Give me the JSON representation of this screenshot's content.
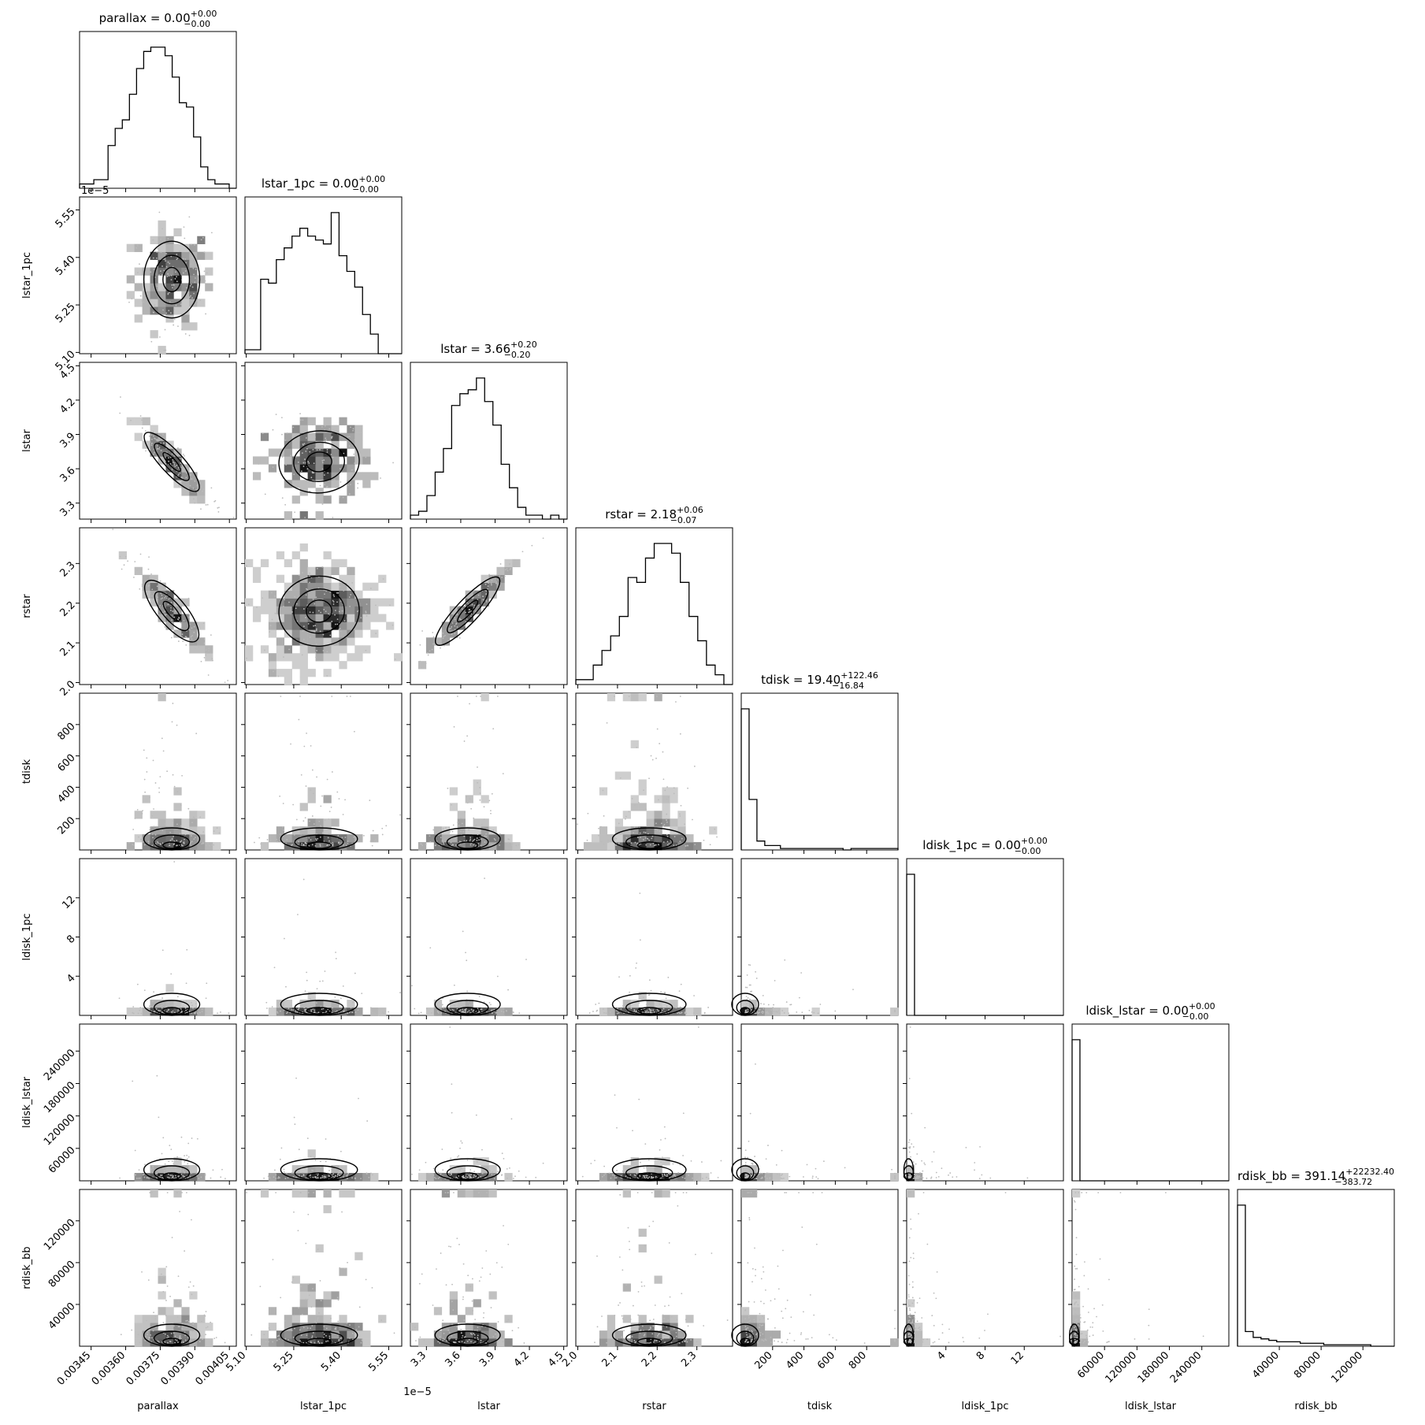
{
  "chart_data": {
    "type": "corner",
    "parameters": [
      {
        "name": "parallax",
        "label": "parallax",
        "range": [
          0.0034,
          0.00408
        ],
        "ticks": [
          {
            "v": 0.00345,
            "t": "0.00345"
          },
          {
            "v": 0.0036,
            "t": "0.00360"
          },
          {
            "v": 0.00375,
            "t": "0.00375"
          },
          {
            "v": 0.0039,
            "t": "0.00390"
          },
          {
            "v": 0.00405,
            "t": "0.00405"
          }
        ],
        "center": 0.0038,
        "spread": 8.5e-05,
        "skew": 0,
        "hist": [
          1,
          1,
          2,
          2,
          10,
          14,
          16,
          22,
          28,
          32,
          33,
          33,
          31,
          26,
          20,
          19,
          12,
          5,
          2,
          1,
          1,
          0
        ],
        "title": {
          "base": "parallax = 0.00",
          "up": "+0.00",
          "down": "−0.00"
        },
        "offset": ""
      },
      {
        "name": "lstar_1pc",
        "label": "lstar_1pc",
        "range": [
          5.096,
          5.591
        ],
        "ticks": [
          {
            "v": 5.1,
            "t": "5.10"
          },
          {
            "v": 5.25,
            "t": "5.25"
          },
          {
            "v": 5.4,
            "t": "5.40"
          },
          {
            "v": 5.55,
            "t": "5.55"
          }
        ],
        "center": 5.33,
        "spread": 0.085,
        "skew": 0,
        "hist": [
          1,
          1,
          19,
          18,
          24,
          27,
          30,
          32,
          30,
          29,
          28,
          36,
          25,
          21,
          17,
          10,
          5,
          0,
          0,
          0
        ],
        "title": {
          "base": "lstar_1pc = 0.00",
          "up": "+0.00",
          "down": "−0.00"
        },
        "offset": "1e−5"
      },
      {
        "name": "lstar",
        "label": "lstar",
        "range": [
          3.16,
          4.53
        ],
        "ticks": [
          {
            "v": 3.3,
            "t": "3.3"
          },
          {
            "v": 3.6,
            "t": "3.6"
          },
          {
            "v": 3.9,
            "t": "3.9"
          },
          {
            "v": 4.2,
            "t": "4.2"
          },
          {
            "v": 4.5,
            "t": "4.5"
          }
        ],
        "center": 3.66,
        "spread": 0.2,
        "skew": 0,
        "hist": [
          1,
          2,
          6,
          12,
          18,
          29,
          32,
          33,
          36,
          30,
          24,
          14,
          8,
          3,
          1,
          1,
          0,
          1,
          0
        ],
        "title": {
          "base": "lstar = 3.66",
          "up": "+0.20",
          "down": "−0.20"
        },
        "offset": ""
      },
      {
        "name": "rstar",
        "label": "rstar",
        "range": [
          1.995,
          2.39
        ],
        "ticks": [
          {
            "v": 2.0,
            "t": "2.0"
          },
          {
            "v": 2.1,
            "t": "2.1"
          },
          {
            "v": 2.2,
            "t": "2.2"
          },
          {
            "v": 2.3,
            "t": "2.3"
          }
        ],
        "center": 2.18,
        "spread": 0.065,
        "skew": 0,
        "hist": [
          1,
          1,
          4,
          7,
          10,
          14,
          22,
          21,
          26,
          29,
          29,
          27,
          21,
          14,
          9,
          4,
          2,
          0
        ],
        "title": {
          "base": "rstar = 2.18",
          "up": "+0.06",
          "down": "−0.07"
        },
        "offset": ""
      },
      {
        "name": "tdisk",
        "label": "tdisk",
        "range": [
          0,
          1000
        ],
        "ticks": [
          {
            "v": 200,
            "t": "200"
          },
          {
            "v": 400,
            "t": "400"
          },
          {
            "v": 600,
            "t": "600"
          },
          {
            "v": 800,
            "t": "800"
          }
        ],
        "center": 25,
        "spread": 60,
        "skew": 1,
        "hist": [
          95,
          34,
          6,
          3,
          3,
          1,
          1,
          1,
          1,
          1,
          1,
          1,
          1,
          0,
          1,
          1,
          1,
          1,
          1,
          1
        ],
        "title": {
          "base": "tdisk = 19.40",
          "up": "+122.46",
          "down": "−16.84"
        },
        "offset": ""
      },
      {
        "name": "ldisk_1pc",
        "label": "ldisk_1pc",
        "range": [
          0,
          16
        ],
        "ticks": [
          {
            "v": 4,
            "t": "4"
          },
          {
            "v": 8,
            "t": "8"
          },
          {
            "v": 12,
            "t": "12"
          }
        ],
        "center": 0.2,
        "spread": 0.3,
        "skew": 1,
        "hist": [
          98,
          0,
          0,
          0,
          0,
          0,
          0,
          0,
          0,
          0,
          0,
          0,
          0,
          0,
          0,
          0,
          0,
          0,
          0,
          0
        ],
        "title": {
          "base": "ldisk_1pc = 0.00",
          "up": "+0.00",
          "down": "−0.00"
        },
        "offset": ""
      },
      {
        "name": "ldisk_lstar",
        "label": "ldisk_lstar",
        "range": [
          0,
          290000
        ],
        "ticks": [
          {
            "v": 60000,
            "t": "60000"
          },
          {
            "v": 120000,
            "t": "120000"
          },
          {
            "v": 180000,
            "t": "180000"
          },
          {
            "v": 240000,
            "t": "240000"
          }
        ],
        "center": 4000,
        "spread": 5000,
        "skew": 1,
        "hist": [
          98,
          0,
          0,
          0,
          0,
          0,
          0,
          0,
          0,
          0,
          0,
          0,
          0,
          0,
          0,
          0,
          0,
          0,
          0,
          0
        ],
        "title": {
          "base": "ldisk_lstar = 0.00",
          "up": "+0.00",
          "down": "−0.00"
        },
        "offset": ""
      },
      {
        "name": "rdisk_bb",
        "label": "rdisk_bb",
        "range": [
          0,
          150000
        ],
        "ticks": [
          {
            "v": 40000,
            "t": "40000"
          },
          {
            "v": 80000,
            "t": "80000"
          },
          {
            "v": 120000,
            "t": "120000"
          }
        ],
        "center": 3000,
        "spread": 12000,
        "skew": 1,
        "hist": [
          96,
          10,
          6,
          5,
          4,
          3,
          3,
          3,
          2,
          2,
          2,
          1,
          1,
          1,
          1,
          1,
          1,
          0,
          0,
          0
        ],
        "title": {
          "base": "rdisk_bb = 391.14",
          "up": "+22232.40",
          "down": "−383.72"
        },
        "offset": ""
      }
    ],
    "correlations": {
      "1-0": 0.0,
      "2-0": -0.93,
      "2-1": 0.1,
      "3-0": -0.9,
      "3-1": 0.1,
      "3-2": 0.95
    },
    "grid": false,
    "legend": "none"
  }
}
